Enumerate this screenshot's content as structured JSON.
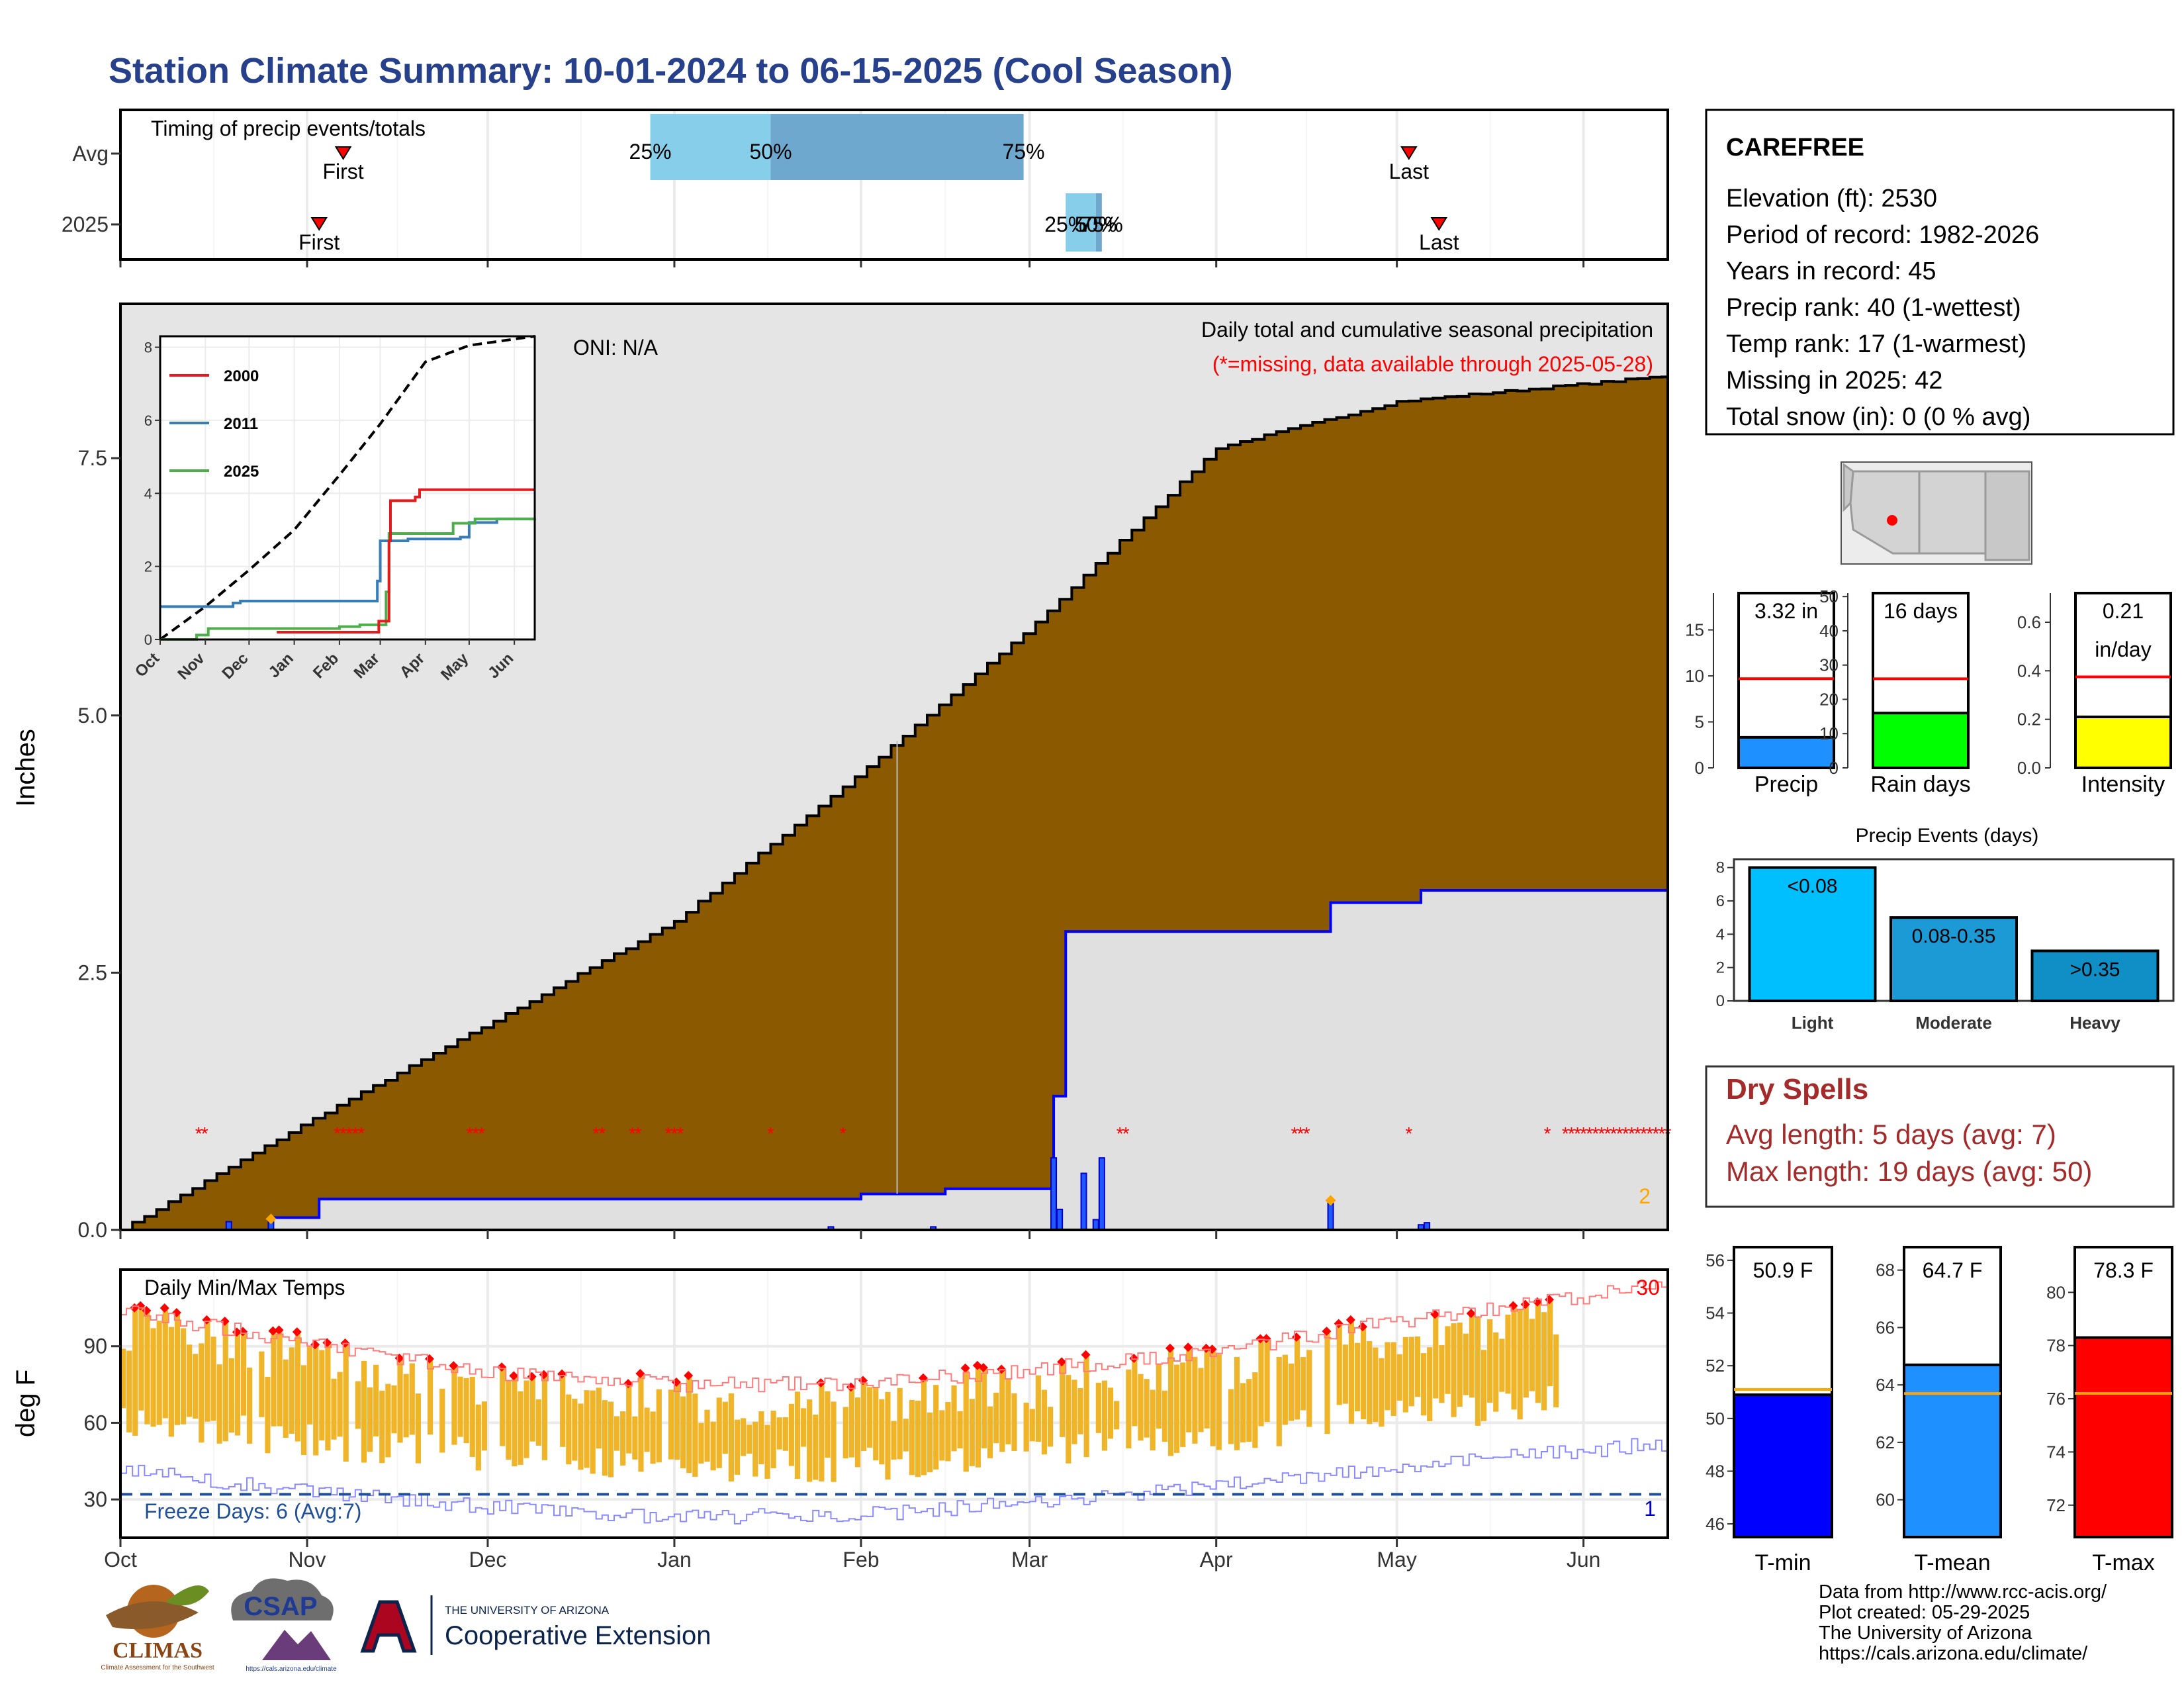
{
  "title": "Station Climate Summary: 10-01-2024 to 06-15-2025 (Cool Season)",
  "months": [
    "Oct",
    "Nov",
    "Dec",
    "Jan",
    "Feb",
    "Mar",
    "Apr",
    "May",
    "Jun"
  ],
  "timing_panel": {
    "title": "Timing of precip events/totals",
    "rows": [
      "Avg",
      "2025"
    ],
    "first_label": "First",
    "last_label": "Last",
    "avg_pcts": [
      "25%",
      "50%",
      "75%"
    ],
    "y2025_pcts": [
      "25%",
      "50%",
      "75%"
    ]
  },
  "main_panel": {
    "ylabel": "Inches",
    "yticks": [
      "0.0",
      "2.5",
      "5.0",
      "7.5"
    ],
    "oni": "ONI: N/A",
    "subtitle": "Daily total and cumulative seasonal precipitation",
    "missing_note": "(*=missing, data available through 2025-05-28)",
    "corner_count": "2"
  },
  "inset": {
    "series": [
      "2000",
      "2011",
      "2025"
    ],
    "yticks": [
      "0",
      "2",
      "4",
      "6",
      "8"
    ],
    "xticks": [
      "Oct",
      "Nov",
      "Dec",
      "Jan",
      "Feb",
      "Mar",
      "Apr",
      "May",
      "Jun"
    ]
  },
  "temp_panel": {
    "title": "Daily Min/Max Temps",
    "ylabel": "deg F",
    "yticks": [
      "30",
      "60",
      "90"
    ],
    "freeze": "Freeze Days: 6 (Avg:7)",
    "hot_count": "30",
    "freeze_count": "1"
  },
  "station_info": {
    "name": "CAREFREE",
    "lines": [
      "Elevation (ft): 2530",
      "Period of record: 1982-2026",
      "Years in record: 45",
      "Precip rank: 40 (1-wettest)",
      "Temp rank: 17 (1-warmest)",
      "Missing in 2025: 42",
      "Total snow (in): 0 (0 % avg)"
    ]
  },
  "mini_bars": [
    {
      "label": "Precip",
      "value_text": "3.32 in",
      "value": 3.32,
      "avg": 9.7,
      "ymax": 19,
      "ticks": [
        "0",
        "5",
        "10",
        "15"
      ],
      "tickvals": [
        0,
        5,
        10,
        15
      ],
      "color": "#1e90ff"
    },
    {
      "label": "Rain days",
      "value_text": "16 days",
      "value": 16,
      "avg": 26,
      "ymax": 51,
      "ticks": [
        "0",
        "10",
        "20",
        "30",
        "40",
        "50"
      ],
      "tickvals": [
        0,
        10,
        20,
        30,
        40,
        50
      ],
      "color": "#00ff00"
    },
    {
      "label": "Intensity",
      "value_text": "0.21",
      "value_text2": "in/day",
      "value": 0.21,
      "avg": 0.375,
      "ymax": 0.72,
      "ticks": [
        "0.0",
        "0.2",
        "0.4",
        "0.6"
      ],
      "tickvals": [
        0,
        0.2,
        0.4,
        0.6
      ],
      "color": "#ffff00"
    }
  ],
  "precip_events": {
    "title": "Precip Events (days)",
    "ymax": 8.5,
    "ticks": [
      "0",
      "2",
      "4",
      "6",
      "8"
    ],
    "bars": [
      {
        "cat": "Light",
        "label": "<0.08",
        "value": 8,
        "color": "#00bfff"
      },
      {
        "cat": "Moderate",
        "label": "0.08-0.35",
        "value": 5,
        "color": "#1b9ad6"
      },
      {
        "cat": "Heavy",
        "label": ">0.35",
        "value": 3,
        "color": "#0f8fc6"
      }
    ]
  },
  "dry_spells": {
    "title": "Dry Spells",
    "line1": "Avg length: 5 days (avg: 7)",
    "line2": "Max length: 19 days (avg: 50)"
  },
  "temp_bars": [
    {
      "label": "T-min",
      "value_text": "50.9 F",
      "value": 50.9,
      "avg": 51.1,
      "ymin": 45.5,
      "ymax": 56.5,
      "ticks": [
        46,
        48,
        50,
        52,
        54,
        56
      ],
      "color": "#0000ff"
    },
    {
      "label": "T-mean",
      "value_text": "64.7 F",
      "value": 64.7,
      "avg": 63.7,
      "ymin": 58.7,
      "ymax": 68.8,
      "ticks": [
        60,
        62,
        64,
        66,
        68
      ],
      "color": "#1e90ff"
    },
    {
      "label": "T-max",
      "value_text": "78.3 F",
      "value": 78.3,
      "avg": 76.2,
      "ymin": 70.8,
      "ymax": 81.7,
      "ticks": [
        72,
        74,
        76,
        78,
        80
      ],
      "color": "#ff0000"
    }
  ],
  "credits": [
    "Data from http://www.rcc-acis.org/",
    "Plot created: 05-29-2025",
    "The University of Arizona",
    "https://cals.arizona.edu/climate/"
  ],
  "logos": {
    "climas": "CLIMAS",
    "climas_sub": "Climate Assessment for the Southwest",
    "csap": "CSAP",
    "csap_url": "https://cals.arizona.edu/climate",
    "ua_small": "THE UNIVERSITY OF ARIZONA",
    "ua_big": "Cooperative Extension"
  },
  "chart_data": {
    "type": "area",
    "title": "Station Climate Summary: 10-01-2024 to 06-15-2025 (Cool Season)",
    "ylabel": "Inches",
    "ylim": [
      0,
      9.0
    ],
    "x_range": [
      "2024-10-01",
      "2025-06-15"
    ],
    "avg_cumulative": {
      "x": [
        "2024-10-01",
        "2024-11-01",
        "2024-12-01",
        "2025-01-01",
        "2025-02-01",
        "2025-03-01",
        "2025-04-01",
        "2025-05-01",
        "2025-06-15"
      ],
      "y": [
        0.0,
        1.05,
        2.0,
        3.0,
        4.45,
        5.85,
        7.6,
        8.05,
        8.3
      ]
    },
    "cum_2025": {
      "x": [
        "2024-10-01",
        "2024-10-20",
        "2024-10-26",
        "2024-11-03",
        "2025-02-01",
        "2025-02-15",
        "2025-03-05",
        "2025-03-07",
        "2025-03-13",
        "2025-04-20",
        "2025-05-05",
        "2025-06-15"
      ],
      "y": [
        0.0,
        0.0,
        0.12,
        0.3,
        0.35,
        0.4,
        1.3,
        2.9,
        2.9,
        3.18,
        3.3,
        3.32
      ]
    },
    "daily_2025": {
      "x": [
        "2024-10-19",
        "2024-10-26",
        "2025-01-27",
        "2025-02-13",
        "2025-03-05",
        "2025-03-06",
        "2025-03-10",
        "2025-03-12",
        "2025-03-13",
        "2025-04-20",
        "2025-05-05",
        "2025-05-06"
      ],
      "y": [
        0.08,
        0.1,
        0.03,
        0.03,
        0.7,
        0.2,
        0.55,
        0.1,
        0.7,
        0.3,
        0.05,
        0.07
      ]
    },
    "avg_timing": {
      "first": "2024-11-07",
      "q25": "2024-12-28",
      "q50": "2025-01-17",
      "q75": "2025-02-28",
      "last": "2025-05-03"
    },
    "timing_2025": {
      "first": "2024-11-03",
      "q25": "2025-03-07",
      "q50": "2025-03-12",
      "q75": "2025-03-13",
      "last": "2025-05-08"
    },
    "inset": {
      "type": "line",
      "ylim": [
        0,
        8.3
      ],
      "avg": {
        "x": [
          "2024-10-01",
          "2024-11-01",
          "2024-12-01",
          "2025-01-01",
          "2025-02-01",
          "2025-03-01",
          "2025-04-01",
          "2025-05-01",
          "2025-06-15"
        ],
        "y": [
          0.0,
          0.9,
          1.9,
          3.0,
          4.5,
          5.9,
          7.6,
          8.05,
          8.3
        ]
      },
      "2000": {
        "x": [
          "2024-12-20",
          "2025-02-15",
          "2025-02-28",
          "2025-03-07",
          "2025-03-08",
          "2025-03-25",
          "2025-03-28",
          "2025-06-15"
        ],
        "y": [
          0.2,
          0.2,
          0.5,
          2.7,
          3.8,
          3.9,
          4.1,
          4.1
        ]
      },
      "2011": {
        "x": [
          "2024-10-01",
          "2024-11-01",
          "2024-11-20",
          "2024-11-25",
          "2025-02-20",
          "2025-02-27",
          "2025-03-01",
          "2025-03-10",
          "2025-03-20",
          "2025-04-25",
          "2025-05-01",
          "2025-05-20",
          "2025-06-15"
        ],
        "y": [
          0.9,
          0.9,
          1.0,
          1.05,
          1.05,
          1.6,
          2.7,
          2.7,
          2.75,
          2.8,
          3.2,
          3.3,
          3.3
        ]
      },
      "2025": {
        "x": [
          "2024-10-01",
          "2024-10-20",
          "2024-10-26",
          "2024-11-03",
          "2025-02-01",
          "2025-02-15",
          "2025-03-05",
          "2025-03-07",
          "2025-03-13",
          "2025-04-20",
          "2025-05-05",
          "2025-06-15"
        ],
        "y": [
          0.0,
          0.0,
          0.12,
          0.3,
          0.35,
          0.4,
          1.3,
          2.9,
          2.9,
          3.18,
          3.3,
          3.32
        ]
      }
    },
    "temps": {
      "ylabel": "deg F",
      "ylim": [
        15,
        120
      ],
      "freeze_line": 32,
      "avg_max": {
        "x": [
          "2024-10-01",
          "2024-11-01",
          "2024-12-01",
          "2025-01-01",
          "2025-02-01",
          "2025-03-01",
          "2025-04-01",
          "2025-05-01",
          "2025-06-15"
        ],
        "y": [
          100,
          87,
          76,
          71,
          71,
          77,
          84,
          96,
          110
        ]
      },
      "avg_min": {
        "x": [
          "2024-10-01",
          "2024-11-01",
          "2024-12-01",
          "2025-01-01",
          "2025-02-01",
          "2025-03-01",
          "2025-04-01",
          "2025-05-01",
          "2025-06-15"
        ],
        "y": [
          50,
          41,
          35,
          31,
          32,
          37,
          43,
          51,
          60
        ]
      }
    }
  }
}
